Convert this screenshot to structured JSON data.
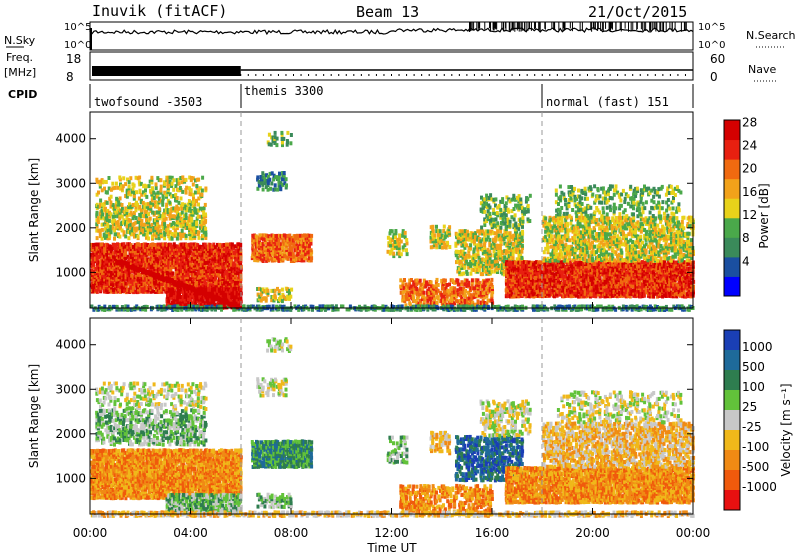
{
  "header": {
    "station": "Inuvik (fitACF)",
    "beam": "Beam 13",
    "date": "21/Oct/2015"
  },
  "noise_panel": {
    "left_label": "N.Sky",
    "right_label": "N.Search",
    "left_ticks": [
      "10^5",
      "10^0"
    ],
    "right_ticks": [
      "10^5",
      "10^0"
    ]
  },
  "freq_panel": {
    "left_label_1": "Freq.",
    "left_label_2": "[MHz]",
    "right_label": "Nave",
    "left_ticks": [
      "18",
      "8"
    ],
    "right_ticks": [
      "60",
      "0"
    ]
  },
  "cpid": {
    "label": "CPID",
    "segments": [
      {
        "name": "twofsound -3503",
        "start_hour": 0
      },
      {
        "name": "themis 3300",
        "start_hour": 6
      },
      {
        "name": "normal (fast) 151",
        "start_hour": 18
      }
    ]
  },
  "colors": {
    "power": [
      "#0000ff",
      "#1a4fa0",
      "#3a8a5a",
      "#4aa84a",
      "#e8d21a",
      "#f2a21a",
      "#f06a10",
      "#e82010",
      "#d40000"
    ],
    "velocity": [
      "#1a3fb5",
      "#1e6a9a",
      "#2e7d4f",
      "#62c23a",
      "#c8c8c8",
      "#f0b81a",
      "#f08a14",
      "#f05a0c",
      "#e81010"
    ]
  },
  "chart_data": [
    {
      "type": "heatmap",
      "name": "power",
      "xlabel": "",
      "ylabel": "Slant Range [km]",
      "ylim": [
        200,
        4600
      ],
      "xlim_hours": [
        0,
        24
      ],
      "yticks": [
        "1000",
        "2000",
        "3000",
        "4000"
      ],
      "colorbar_label": "Power [dB]",
      "colorbar_ticks": [
        "4",
        "8",
        "12",
        "16",
        "20",
        "24",
        "28"
      ]
    },
    {
      "type": "heatmap",
      "name": "velocity",
      "xlabel": "Time UT",
      "ylabel": "Slant Range [km]",
      "ylim": [
        200,
        4600
      ],
      "xlim_hours": [
        0,
        24
      ],
      "yticks": [
        "1000",
        "2000",
        "3000",
        "4000"
      ],
      "xticks": [
        "00:00",
        "04:00",
        "08:00",
        "12:00",
        "16:00",
        "20:00",
        "00:00"
      ],
      "colorbar_label": "Velocity [m s⁻¹]",
      "colorbar_ticks": [
        "1000",
        "500",
        "100",
        "25",
        "-25",
        "-100",
        "-500",
        "-1000"
      ]
    }
  ]
}
